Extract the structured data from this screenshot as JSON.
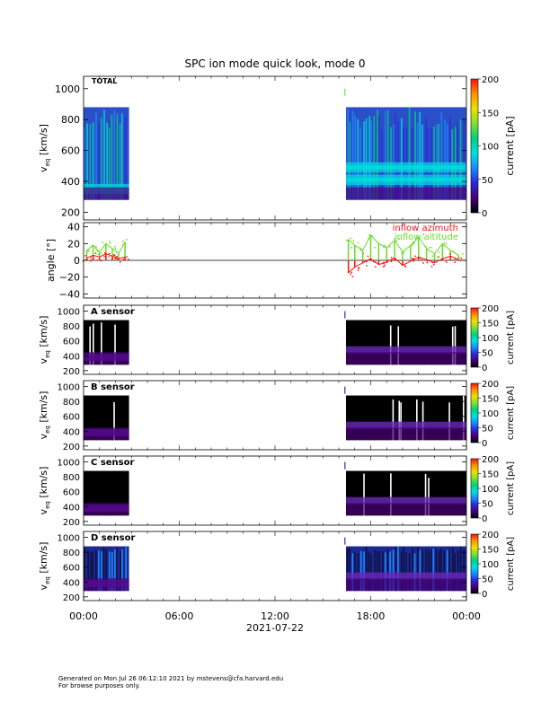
{
  "title": "SPC ion mode quick look, mode 0",
  "footer": {
    "line1": "Generated on Mon Jul 26 06:12:10 2021 by mstevens@cfa.harvard.edu",
    "line2": "For browse purposes only."
  },
  "colors": {
    "colorbar_stops": [
      "#000000",
      "#4a007a",
      "#2a2ad8",
      "#1a8aff",
      "#00e0e0",
      "#00d080",
      "#80e030",
      "#f0e000",
      "#ff9000",
      "#ff1010"
    ],
    "azimuth": "#ff1010",
    "altitude": "#66dd22"
  },
  "chart_data": [
    {
      "type": "heatmap",
      "panel_label": "TOTAL",
      "ylabel": "v",
      "ylabel_sub": "eq",
      "ylabel_unit": " [km/s]",
      "yticks": [
        "200",
        "400",
        "600",
        "800",
        "1000"
      ],
      "ylim": [
        150,
        1080
      ],
      "xlim": [
        0,
        24
      ],
      "colorbar": {
        "label": "current [pA]",
        "range": [
          0,
          200
        ],
        "ticks": [
          "0",
          "50",
          "100",
          "150",
          "200"
        ]
      },
      "data_intervals_hours": [
        [
          0.0,
          2.85
        ],
        [
          16.45,
          24.0
        ]
      ],
      "core_speed_kms": [
        {
          "t": 0.5,
          "v": 360
        },
        {
          "t": 2.5,
          "v": 340
        },
        {
          "t": 17,
          "v": 400
        },
        {
          "t": 19,
          "v": 420
        },
        {
          "t": 21,
          "v": 480
        },
        {
          "t": 23,
          "v": 500
        }
      ]
    },
    {
      "type": "line",
      "ylabel": "angle [°]",
      "yticks": [
        "−40",
        "−20",
        "0",
        "20",
        "40"
      ],
      "ylim": [
        -45,
        45
      ],
      "xlim": [
        0,
        24
      ],
      "series": [
        {
          "name": "inflow azimuth",
          "x": [
            0.2,
            0.6,
            1.0,
            1.4,
            1.8,
            2.2,
            2.6,
            16.6,
            17.0,
            17.5,
            18.0,
            18.5,
            19.0,
            19.5,
            20.0,
            20.5,
            21.0,
            21.5,
            22.0,
            22.5,
            23.0,
            23.5
          ],
          "y": [
            3,
            6,
            4,
            8,
            5,
            2,
            4,
            -15,
            -8,
            -3,
            2,
            -5,
            -2,
            3,
            -6,
            -1,
            4,
            1,
            -3,
            2,
            5,
            1
          ]
        },
        {
          "name": "inflow altitude",
          "x": [
            0.2,
            0.6,
            1.0,
            1.4,
            1.8,
            2.2,
            2.6,
            16.6,
            17.0,
            17.5,
            18.0,
            18.5,
            19.0,
            19.5,
            20.0,
            20.5,
            21.0,
            21.5,
            22.0,
            22.5,
            23.0,
            23.5
          ],
          "y": [
            12,
            18,
            10,
            20,
            14,
            8,
            22,
            25,
            18,
            12,
            30,
            20,
            15,
            24,
            10,
            18,
            28,
            14,
            8,
            20,
            12,
            6
          ]
        }
      ]
    },
    {
      "type": "heatmap",
      "panel_label": "A sensor",
      "ylabel": "v",
      "ylabel_sub": "eq",
      "ylabel_unit": " [km/s]",
      "yticks": [
        "200",
        "400",
        "600",
        "800",
        "1000"
      ],
      "ylim": [
        150,
        1080
      ],
      "xlim": [
        0,
        24
      ],
      "colorbar": {
        "label": "current [pA]",
        "range": [
          0,
          200
        ],
        "ticks": [
          "0",
          "50",
          "100",
          "150",
          "200"
        ]
      },
      "data_intervals_hours": [
        [
          0.0,
          2.85
        ],
        [
          16.45,
          24.0
        ]
      ],
      "core_speed_kms": [
        {
          "t": 1.5,
          "v": 380
        },
        {
          "t": 20,
          "v": 480
        }
      ]
    },
    {
      "type": "heatmap",
      "panel_label": "B sensor",
      "ylabel": "v",
      "ylabel_sub": "eq",
      "ylabel_unit": " [km/s]",
      "yticks": [
        "200",
        "400",
        "600",
        "800",
        "1000"
      ],
      "ylim": [
        150,
        1080
      ],
      "xlim": [
        0,
        24
      ],
      "colorbar": {
        "label": "current [pA]",
        "range": [
          0,
          200
        ],
        "ticks": [
          "0",
          "50",
          "100",
          "150",
          "200"
        ]
      },
      "data_intervals_hours": [
        [
          0.0,
          2.85
        ],
        [
          16.45,
          24.0
        ]
      ],
      "core_speed_kms": [
        {
          "t": 1.5,
          "v": 380
        },
        {
          "t": 20,
          "v": 480
        }
      ]
    },
    {
      "type": "heatmap",
      "panel_label": "C sensor",
      "ylabel": "v",
      "ylabel_sub": "eq",
      "ylabel_unit": " [km/s]",
      "yticks": [
        "200",
        "400",
        "600",
        "800",
        "1000"
      ],
      "ylim": [
        150,
        1080
      ],
      "xlim": [
        0,
        24
      ],
      "colorbar": {
        "label": "current [pA]",
        "range": [
          0,
          200
        ],
        "ticks": [
          "0",
          "50",
          "100",
          "150",
          "200"
        ]
      },
      "data_intervals_hours": [
        [
          0.0,
          2.85
        ],
        [
          16.45,
          24.0
        ]
      ],
      "core_speed_kms": [
        {
          "t": 1.5,
          "v": 380
        },
        {
          "t": 20,
          "v": 480
        }
      ]
    },
    {
      "type": "heatmap",
      "panel_label": "D sensor",
      "ylabel": "v",
      "ylabel_sub": "eq",
      "ylabel_unit": " [km/s]",
      "yticks": [
        "200",
        "400",
        "600",
        "800",
        "1000"
      ],
      "ylim": [
        150,
        1080
      ],
      "xlim": [
        0,
        24
      ],
      "colorbar": {
        "label": "current [pA]",
        "range": [
          0,
          200
        ],
        "ticks": [
          "0",
          "50",
          "100",
          "150",
          "200"
        ]
      },
      "data_intervals_hours": [
        [
          0.0,
          2.85
        ],
        [
          16.45,
          24.0
        ]
      ],
      "core_speed_kms": [
        {
          "t": 1.5,
          "v": 380
        },
        {
          "t": 20,
          "v": 480
        }
      ]
    }
  ],
  "xaxis": {
    "ticks": [
      {
        "t": 0,
        "label": "00:00"
      },
      {
        "t": 6,
        "label": "06:00"
      },
      {
        "t": 12,
        "label": "12:00"
      },
      {
        "t": 18,
        "label": "18:00"
      },
      {
        "t": 24,
        "label": "00:00"
      }
    ],
    "date_label": "2021-07-22"
  }
}
